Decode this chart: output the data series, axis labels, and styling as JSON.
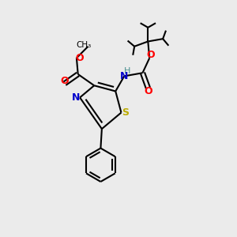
{
  "background_color": "#ebebeb",
  "atom_colors": {
    "C": "#000000",
    "N": "#0000cc",
    "O": "#ff0000",
    "S": "#bbaa00",
    "H": "#4a9090"
  },
  "figsize": [
    3.0,
    3.0
  ],
  "dpi": 100,
  "bond_lw": 1.5,
  "font_size_atom": 9,
  "font_size_small": 7.5
}
